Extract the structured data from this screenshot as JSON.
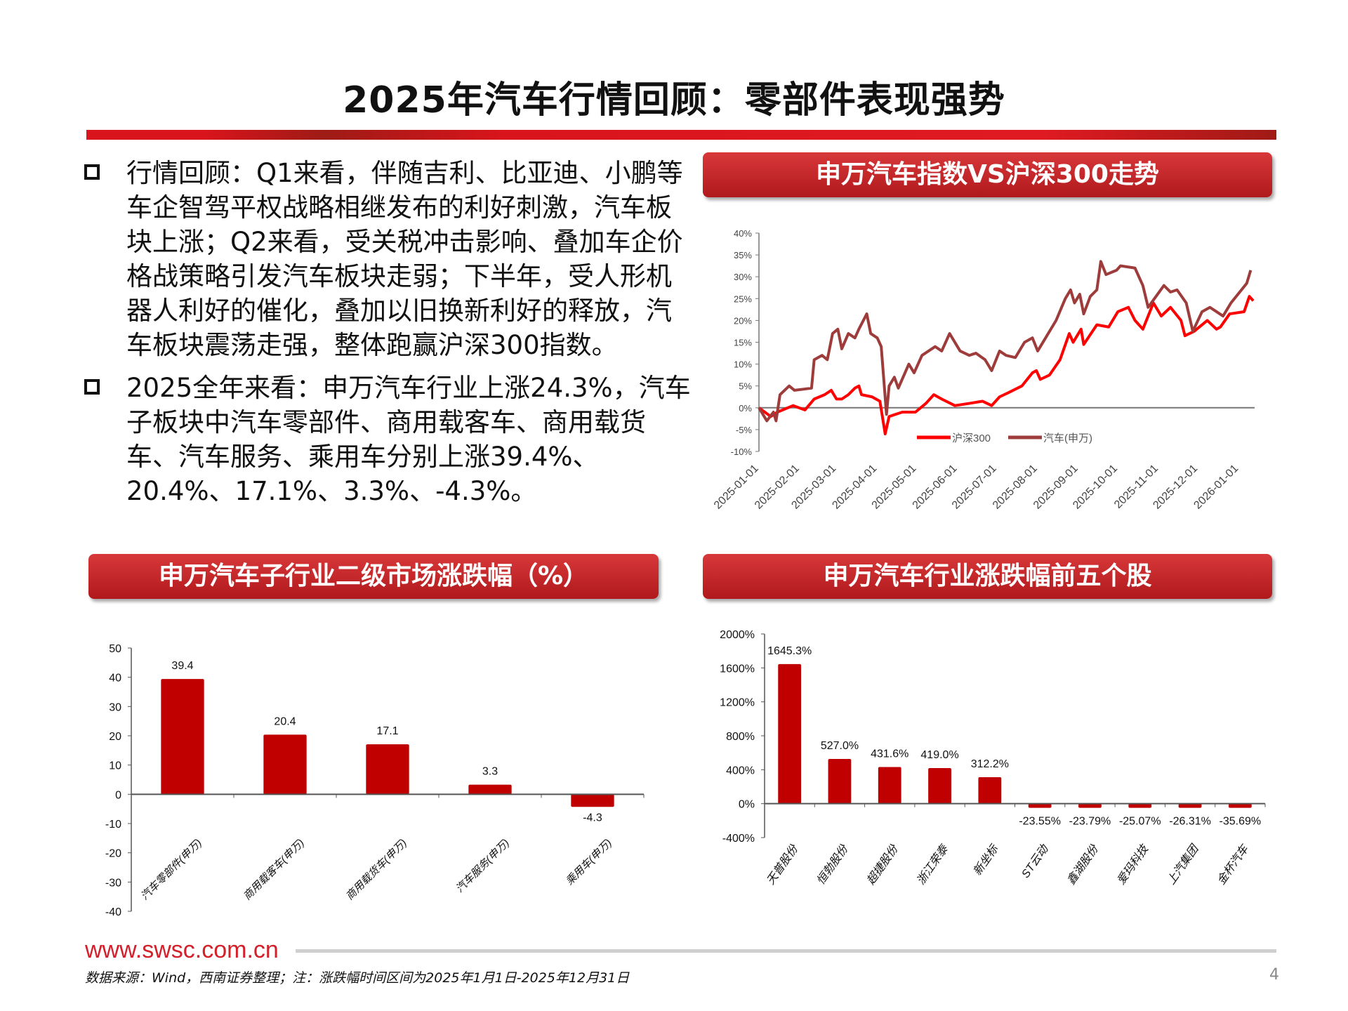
{
  "title": "2025年汽车行情回顾：零部件表现强势",
  "bullets": [
    "行情回顾：Q1来看，伴随吉利、比亚迪、小鹏等车企智驾平权战略相继发布的利好刺激，汽车板块上涨；Q2来看，受关税冲击影响、叠加车企价格战策略引发汽车板块走弱；下半年，受人形机器人利好的催化，叠加以旧换新利好的释放，汽车板块震荡走强，整体跑赢沪深300指数。",
    "2025全年来看：申万汽车行业上涨24.3%，汽车子板块中汽车零部件、商用载客车、商用载货车、汽车服务、乘用车分别上涨39.4%、20.4%、17.1%、3.3%、-4.3%。"
  ],
  "banners": {
    "line_chart": "申万汽车指数VS沪深300走势",
    "sub_industry": "申万汽车子行业二级市场涨跌幅（%）",
    "top_stocks": "申万汽车行业涨跌幅前五个股"
  },
  "colors": {
    "hs300": "#ff0000",
    "auto": "#9e3b3b",
    "bar": "#c00000"
  },
  "chart_data": [
    {
      "type": "line",
      "ylim": [
        -10,
        40
      ],
      "yticks": [
        "-10%",
        "-5%",
        "0%",
        "5%",
        "10%",
        "15%",
        "20%",
        "25%",
        "30%",
        "35%",
        "40%"
      ],
      "xlim": [
        "2025-01-01",
        "2026-01-13"
      ],
      "xticks": [
        "2025-01-01",
        "2025-02-01",
        "2025-03-01",
        "2025-04-01",
        "2025-05-01",
        "2025-06-01",
        "2025-07-01",
        "2025-08-01",
        "2025-09-01",
        "2025-10-01",
        "2025-11-01",
        "2025-12-01",
        "2026-01-01"
      ],
      "legend": "bottom-center",
      "grid": false,
      "series": [
        {
          "name": "沪深300",
          "color": "#ff0000",
          "points": [
            [
              "2025-01-01",
              0
            ],
            [
              "2025-01-10",
              -2
            ],
            [
              "2025-01-15",
              -1
            ],
            [
              "2025-01-27",
              0.5
            ],
            [
              "2025-02-05",
              -0.5
            ],
            [
              "2025-02-12",
              2
            ],
            [
              "2025-02-20",
              3
            ],
            [
              "2025-02-25",
              4
            ],
            [
              "2025-03-01",
              2
            ],
            [
              "2025-03-05",
              2
            ],
            [
              "2025-03-10",
              3
            ],
            [
              "2025-03-15",
              4.5
            ],
            [
              "2025-03-18",
              5
            ],
            [
              "2025-03-20",
              3
            ],
            [
              "2025-03-28",
              2.5
            ],
            [
              "2025-04-03",
              1.5
            ],
            [
              "2025-04-07",
              -6
            ],
            [
              "2025-04-10",
              -2
            ],
            [
              "2025-04-20",
              -1
            ],
            [
              "2025-04-30",
              -1
            ],
            [
              "2025-05-08",
              1
            ],
            [
              "2025-05-14",
              3
            ],
            [
              "2025-05-20",
              2
            ],
            [
              "2025-05-30",
              0.5
            ],
            [
              "2025-06-10",
              1
            ],
            [
              "2025-06-20",
              1.5
            ],
            [
              "2025-06-27",
              0.5
            ],
            [
              "2025-07-03",
              2.5
            ],
            [
              "2025-07-10",
              3.5
            ],
            [
              "2025-07-20",
              5
            ],
            [
              "2025-07-28",
              8
            ],
            [
              "2025-07-31",
              8.5
            ],
            [
              "2025-08-03",
              6.5
            ],
            [
              "2025-08-10",
              7.5
            ],
            [
              "2025-08-18",
              11
            ],
            [
              "2025-08-25",
              17
            ],
            [
              "2025-08-28",
              15
            ],
            [
              "2025-09-03",
              18
            ],
            [
              "2025-09-05",
              14.5
            ],
            [
              "2025-09-15",
              19
            ],
            [
              "2025-09-24",
              18.5
            ],
            [
              "2025-10-01",
              22
            ],
            [
              "2025-10-09",
              23
            ],
            [
              "2025-10-14",
              20
            ],
            [
              "2025-10-20",
              18
            ],
            [
              "2025-10-28",
              24
            ],
            [
              "2025-11-03",
              21
            ],
            [
              "2025-11-10",
              23
            ],
            [
              "2025-11-18",
              20
            ],
            [
              "2025-11-21",
              16.5
            ],
            [
              "2025-11-28",
              17.5
            ],
            [
              "2025-12-08",
              20
            ],
            [
              "2025-12-15",
              18
            ],
            [
              "2025-12-18",
              18.5
            ],
            [
              "2025-12-25",
              21.5
            ],
            [
              "2026-01-05",
              22
            ],
            [
              "2026-01-09",
              25.5
            ],
            [
              "2026-01-12",
              24.5
            ]
          ]
        },
        {
          "name": "汽车(申万)",
          "color": "#9e3b3b",
          "points": [
            [
              "2025-01-01",
              0
            ],
            [
              "2025-01-07",
              -3
            ],
            [
              "2025-01-12",
              -1
            ],
            [
              "2025-01-14",
              -3
            ],
            [
              "2025-01-17",
              3
            ],
            [
              "2025-01-24",
              5
            ],
            [
              "2025-01-28",
              4
            ],
            [
              "2025-02-10",
              4.5
            ],
            [
              "2025-02-12",
              11
            ],
            [
              "2025-02-18",
              12
            ],
            [
              "2025-02-22",
              11
            ],
            [
              "2025-02-26",
              17
            ],
            [
              "2025-03-02",
              18
            ],
            [
              "2025-03-05",
              13.5
            ],
            [
              "2025-03-10",
              17
            ],
            [
              "2025-03-15",
              16
            ],
            [
              "2025-03-18",
              18
            ],
            [
              "2025-03-24",
              21.5
            ],
            [
              "2025-03-27",
              17
            ],
            [
              "2025-04-01",
              16
            ],
            [
              "2025-04-04",
              14
            ],
            [
              "2025-04-08",
              -1.5
            ],
            [
              "2025-04-10",
              5
            ],
            [
              "2025-04-14",
              7
            ],
            [
              "2025-04-17",
              4.5
            ],
            [
              "2025-04-25",
              10
            ],
            [
              "2025-04-29",
              8
            ],
            [
              "2025-05-05",
              12
            ],
            [
              "2025-05-15",
              14
            ],
            [
              "2025-05-20",
              13
            ],
            [
              "2025-05-26",
              17
            ],
            [
              "2025-06-03",
              13
            ],
            [
              "2025-06-10",
              12
            ],
            [
              "2025-06-15",
              12.5
            ],
            [
              "2025-06-22",
              11
            ],
            [
              "2025-06-27",
              8.5
            ],
            [
              "2025-07-03",
              13
            ],
            [
              "2025-07-08",
              12
            ],
            [
              "2025-07-15",
              11.5
            ],
            [
              "2025-07-22",
              15
            ],
            [
              "2025-07-28",
              16
            ],
            [
              "2025-08-01",
              13
            ],
            [
              "2025-08-08",
              16.5
            ],
            [
              "2025-08-15",
              20
            ],
            [
              "2025-08-22",
              25
            ],
            [
              "2025-08-26",
              27
            ],
            [
              "2025-08-29",
              24
            ],
            [
              "2025-09-02",
              26
            ],
            [
              "2025-09-05",
              21.5
            ],
            [
              "2025-09-10",
              25.5
            ],
            [
              "2025-09-15",
              27
            ],
            [
              "2025-09-18",
              33.5
            ],
            [
              "2025-09-22",
              30.5
            ],
            [
              "2025-09-30",
              31.5
            ],
            [
              "2025-10-03",
              32.5
            ],
            [
              "2025-10-14",
              32
            ],
            [
              "2025-10-20",
              28
            ],
            [
              "2025-10-24",
              23
            ],
            [
              "2025-10-30",
              25.5
            ],
            [
              "2025-11-05",
              28
            ],
            [
              "2025-11-10",
              26.5
            ],
            [
              "2025-11-15",
              27
            ],
            [
              "2025-11-22",
              24
            ],
            [
              "2025-11-27",
              17.5
            ],
            [
              "2025-12-04",
              22
            ],
            [
              "2025-12-10",
              23
            ],
            [
              "2025-12-15",
              22
            ],
            [
              "2025-12-20",
              21
            ],
            [
              "2025-12-26",
              24
            ],
            [
              "2026-01-03",
              27
            ],
            [
              "2026-01-07",
              28.5
            ],
            [
              "2026-01-10",
              31.5
            ]
          ]
        }
      ]
    },
    {
      "type": "bar",
      "ylim": [
        -40,
        50
      ],
      "yticks": [
        "-40",
        "-30",
        "-20",
        "-10",
        "0",
        "10",
        "20",
        "30",
        "40",
        "50"
      ],
      "categories": [
        "汽车零部件(申万)",
        "商用载客车(申万)",
        "商用载货车(申万)",
        "汽车服务(申万)",
        "乘用车(申万)"
      ],
      "values": [
        39.4,
        20.4,
        17.1,
        3.3,
        -4.3
      ],
      "labels": [
        "39.4",
        "20.4",
        "17.1",
        "3.3",
        "-4.3"
      ]
    },
    {
      "type": "bar",
      "ylim": [
        -400,
        2000
      ],
      "yticks": [
        "-400%",
        "0%",
        "400%",
        "800%",
        "1200%",
        "1600%",
        "2000%"
      ],
      "categories": [
        "天普股份",
        "恒勃股份",
        "超捷股份",
        "浙江荣泰",
        "新坐标",
        "ST云动",
        "鑫湖股份",
        "爱玛科技",
        "上汽集团",
        "金杯汽车"
      ],
      "values": [
        1645.3,
        527.0,
        431.6,
        419.0,
        312.2,
        -23.55,
        -23.79,
        -25.07,
        -26.31,
        -35.69
      ],
      "labels": [
        "1645.3%",
        "527.0%",
        "431.6%",
        "419.0%",
        "312.2%",
        "-23.55%",
        "-23.79%",
        "-25.07%",
        "-26.31%",
        "-35.69%"
      ]
    }
  ],
  "footer": {
    "url": "www.swsc.com.cn",
    "source": "数据来源：Wind，西南证券整理；注：涨跌幅时间区间为2025年1月1日-2025年12月31日",
    "page": "4"
  }
}
